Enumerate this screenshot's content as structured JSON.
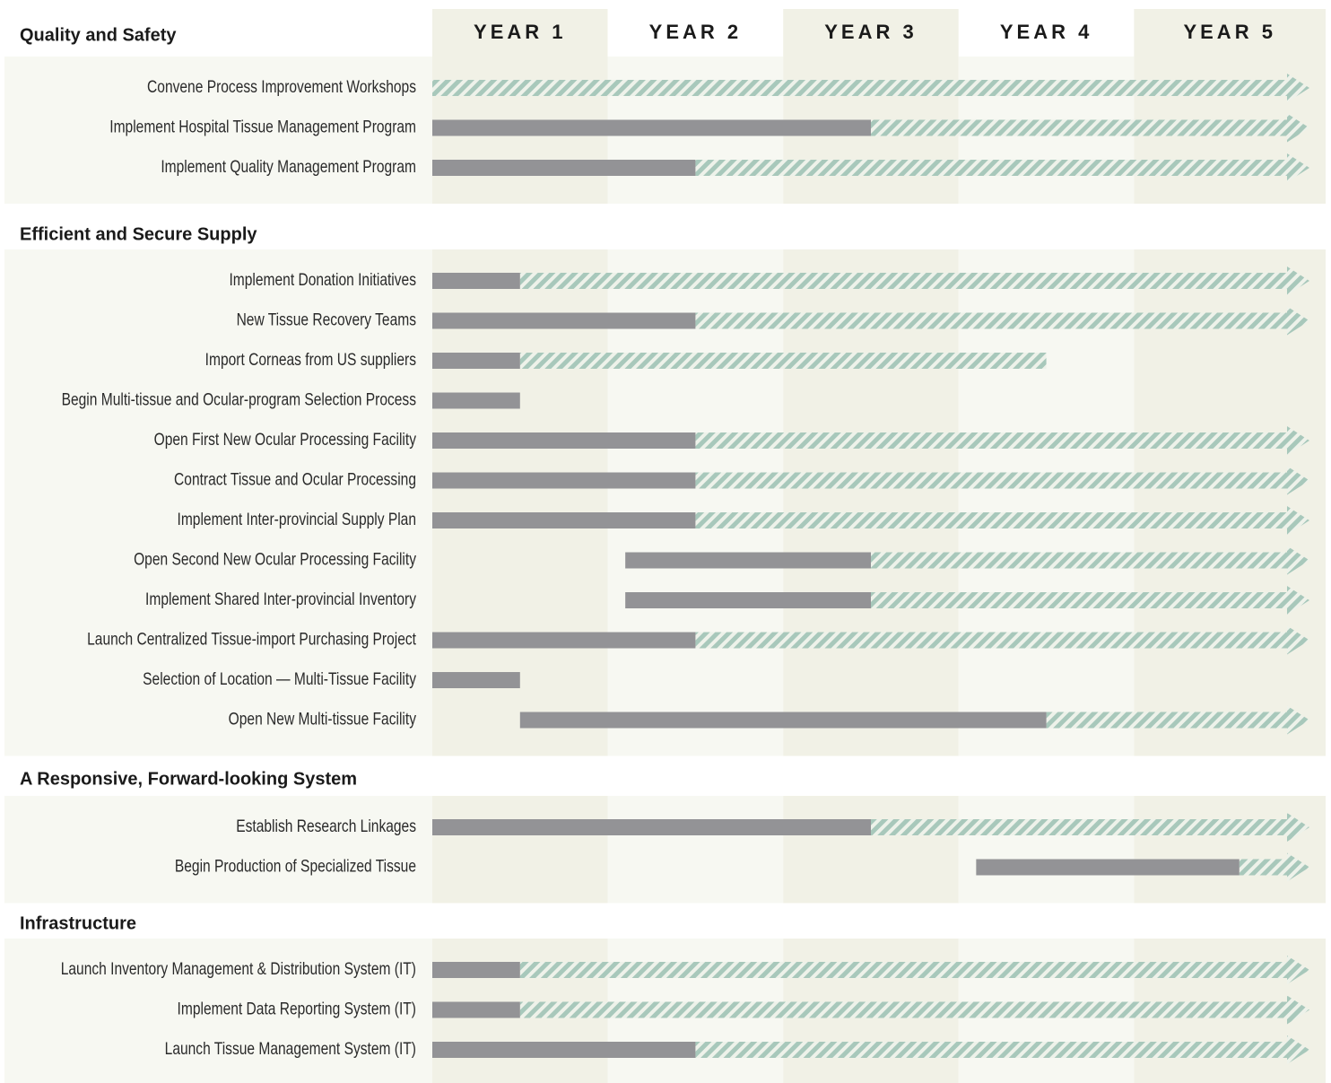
{
  "chart_data": {
    "type": "gantt",
    "columns": [
      "YEAR 1",
      "YEAR 2",
      "YEAR 3",
      "YEAR 4",
      "YEAR 5"
    ],
    "xlim": [
      0,
      5
    ],
    "colors": {
      "solid": "#939396",
      "hatch": "#a8c8bb"
    },
    "sections": [
      {
        "title": "Quality and Safety",
        "tasks": [
          {
            "label": "Convene Process Improvement Workshops",
            "start": 0,
            "solid_end": 0,
            "end": 5,
            "arrow": true
          },
          {
            "label": "Implement Hospital Tissue Management Program",
            "start": 0,
            "solid_end": 2.5,
            "end": 5,
            "arrow": true
          },
          {
            "label": "Implement Quality Management Program",
            "start": 0,
            "solid_end": 1.5,
            "end": 5,
            "arrow": true
          }
        ]
      },
      {
        "title": "Efficient and Secure Supply",
        "tasks": [
          {
            "label": "Implement Donation Initiatives",
            "start": 0,
            "solid_end": 0.5,
            "end": 5,
            "arrow": true
          },
          {
            "label": "New Tissue Recovery Teams",
            "start": 0,
            "solid_end": 1.5,
            "end": 5,
            "arrow": true
          },
          {
            "label": "Import Corneas from US suppliers",
            "start": 0,
            "solid_end": 0.5,
            "end": 3.5,
            "arrow": false
          },
          {
            "label": "Begin Multi-tissue and Ocular-program Selection Process",
            "start": 0,
            "solid_end": 0.5,
            "end": 0.5,
            "arrow": false
          },
          {
            "label": "Open First New Ocular Processing Facility",
            "start": 0,
            "solid_end": 1.5,
            "end": 5,
            "arrow": true
          },
          {
            "label": "Contract Tissue and Ocular Processing",
            "start": 0,
            "solid_end": 1.5,
            "end": 5,
            "arrow": true
          },
          {
            "label": "Implement Inter-provincial Supply Plan",
            "start": 0,
            "solid_end": 1.5,
            "end": 5,
            "arrow": true
          },
          {
            "label": "Open Second New Ocular Processing Facility",
            "start": 1.1,
            "solid_end": 2.5,
            "end": 5,
            "arrow": true
          },
          {
            "label": "Implement Shared Inter-provincial Inventory",
            "start": 1.1,
            "solid_end": 2.5,
            "end": 5,
            "arrow": true
          },
          {
            "label": "Launch Centralized Tissue-import Purchasing Project",
            "start": 0,
            "solid_end": 1.5,
            "end": 5,
            "arrow": true
          },
          {
            "label": "Selection of Location — Multi-Tissue Facility",
            "start": 0,
            "solid_end": 0.5,
            "end": 0.5,
            "arrow": false
          },
          {
            "label": "Open New Multi-tissue Facility",
            "start": 0.5,
            "solid_end": 3.5,
            "end": 5,
            "arrow": true
          }
        ]
      },
      {
        "title": "A Responsive, Forward-looking System",
        "tasks": [
          {
            "label": "Establish Research Linkages",
            "start": 0,
            "solid_end": 2.5,
            "end": 5,
            "arrow": true
          },
          {
            "label": "Begin Production of Specialized Tissue",
            "start": 3.1,
            "solid_end": 4.6,
            "end": 5,
            "arrow": true
          }
        ]
      },
      {
        "title": "Infrastructure",
        "tasks": [
          {
            "label": "Launch Inventory Management & Distribution System (IT)",
            "start": 0,
            "solid_end": 0.5,
            "end": 5,
            "arrow": true
          },
          {
            "label": "Implement Data Reporting System (IT)",
            "start": 0,
            "solid_end": 0.5,
            "end": 5,
            "arrow": true
          },
          {
            "label": "Launch Tissue Management System (IT)",
            "start": 0,
            "solid_end": 1.5,
            "end": 5,
            "arrow": true
          }
        ]
      }
    ]
  }
}
